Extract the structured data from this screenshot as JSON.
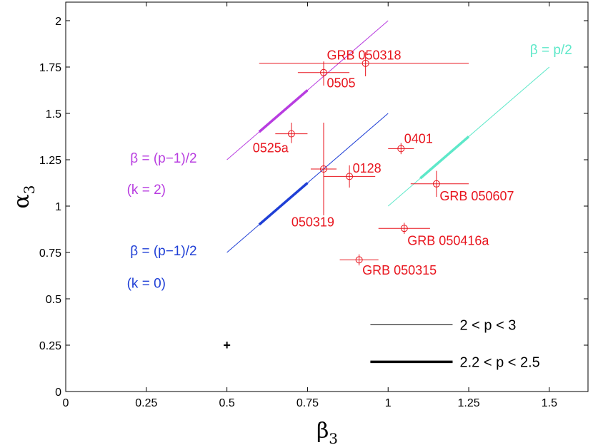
{
  "chart_data": {
    "type": "scatter",
    "xlabel": "β",
    "xlabel_sub": "3",
    "ylabel": "α",
    "ylabel_sub": "3",
    "xlim": [
      0,
      1.62
    ],
    "ylim": [
      0,
      2.1
    ],
    "x_ticks": [
      0,
      0.25,
      0.5,
      0.75,
      1,
      1.25,
      1.5
    ],
    "x_tick_labels": [
      "0",
      "0.25",
      "0.5",
      "0.75",
      "1",
      "1.25",
      "1.5"
    ],
    "y_ticks": [
      0,
      0.25,
      0.5,
      0.75,
      1,
      1.25,
      1.5,
      1.75,
      2
    ],
    "y_tick_labels": [
      "0",
      "0.25",
      "0.5",
      "0.75",
      "1",
      "1.25",
      "1.5",
      "1.75",
      "2"
    ],
    "colors": {
      "points": "#e8151e",
      "k2": "#b83de0",
      "k0": "#1f3fd6",
      "pover2": "#5ee8c9",
      "marker": "#000000"
    },
    "lines": [
      {
        "id": "k2",
        "name": "β = (p−1)/2",
        "sub": "(k = 2)",
        "color_key": "k2",
        "thin": [
          [
            0.5,
            1.25
          ],
          [
            1.0,
            2.0
          ]
        ],
        "thick": [
          [
            0.6,
            1.4
          ],
          [
            0.75,
            1.625
          ]
        ],
        "label_anchor": [
          0.2,
          1.235
        ],
        "sub_anchor": [
          0.25,
          1.065
        ]
      },
      {
        "id": "k0",
        "name": "β = (p−1)/2",
        "sub": "(k = 0)",
        "color_key": "k0",
        "thin": [
          [
            0.5,
            0.75
          ],
          [
            1.0,
            1.5
          ]
        ],
        "thick": [
          [
            0.6,
            0.9
          ],
          [
            0.75,
            1.125
          ]
        ],
        "label_anchor": [
          0.2,
          0.735
        ],
        "sub_anchor": [
          0.25,
          0.56
        ]
      },
      {
        "id": "pover2",
        "name": "β = p/2",
        "sub": "",
        "color_key": "pover2",
        "thin": [
          [
            1.0,
            1.0
          ],
          [
            1.5,
            1.75
          ]
        ],
        "thick": [
          [
            1.1,
            1.15
          ],
          [
            1.25,
            1.375
          ]
        ],
        "label_anchor": [
          1.44,
          1.82
        ],
        "sub_anchor": null
      }
    ],
    "points": [
      {
        "label": "GRB 050318",
        "x": 0.93,
        "y": 1.77,
        "xerr": [
          0.33,
          0.32
        ],
        "yerr": [
          0.07,
          0.06
        ],
        "label_pos": [
          0.81,
          1.79
        ]
      },
      {
        "label": "0505",
        "x": 0.8,
        "y": 1.72,
        "xerr": [
          0.08,
          0.08
        ],
        "yerr": [
          0.07,
          0.06
        ],
        "label_pos": [
          0.81,
          1.64
        ]
      },
      {
        "label": "0525a",
        "x": 0.7,
        "y": 1.39,
        "xerr": [
          0.05,
          0.05
        ],
        "yerr": [
          0.05,
          0.06
        ],
        "label_pos": [
          0.58,
          1.29
        ]
      },
      {
        "label": "0401",
        "x": 1.04,
        "y": 1.31,
        "xerr": [
          0.04,
          0.04
        ],
        "yerr": [
          0.03,
          0.03
        ],
        "label_pos": [
          1.05,
          1.34
        ]
      },
      {
        "label": "0128",
        "x": 0.88,
        "y": 1.16,
        "xerr": [
          0.08,
          0.08
        ],
        "yerr": [
          0.06,
          0.06
        ],
        "label_pos": [
          0.89,
          1.18
        ]
      },
      {
        "label": "050319",
        "x": 0.8,
        "y": 1.2,
        "xerr": [
          0.04,
          0.04
        ],
        "yerr": [
          0.25,
          0.25
        ],
        "label_pos": [
          0.7,
          0.89
        ]
      },
      {
        "label": "GRB 050607",
        "x": 1.15,
        "y": 1.12,
        "xerr": [
          0.08,
          0.1
        ],
        "yerr": [
          0.07,
          0.07
        ],
        "label_pos": [
          1.16,
          1.03
        ]
      },
      {
        "label": "GRB 050416a",
        "x": 1.05,
        "y": 0.88,
        "xerr": [
          0.08,
          0.08
        ],
        "yerr": [
          0.03,
          0.03
        ],
        "label_pos": [
          1.06,
          0.79
        ]
      },
      {
        "label": "GRB 050315",
        "x": 0.91,
        "y": 0.71,
        "xerr": [
          0.06,
          0.06
        ],
        "yerr": [
          0.03,
          0.03
        ],
        "label_pos": [
          0.92,
          0.63
        ]
      }
    ],
    "marker": {
      "x": 0.5,
      "y": 0.25
    },
    "legend": [
      {
        "label": "2 < p < 3",
        "style": "thin",
        "line_x": [
          0.945,
          1.2
        ],
        "y": 0.36
      },
      {
        "label": "2.2 < p < 2.5",
        "style": "thick",
        "line_x": [
          0.945,
          1.2
        ],
        "y": 0.16
      }
    ]
  }
}
